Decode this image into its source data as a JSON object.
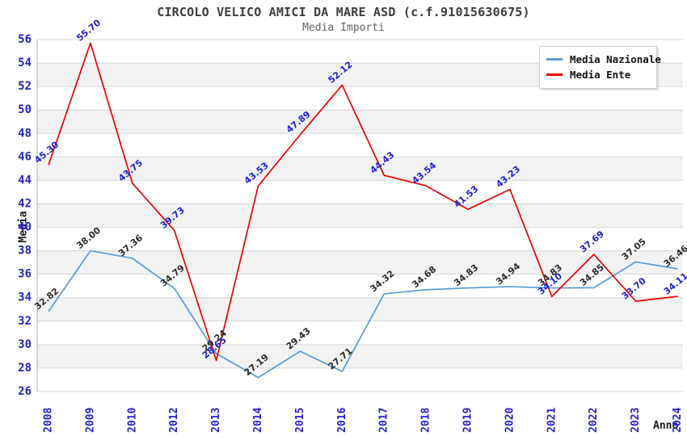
{
  "header": {
    "title": "CIRCOLO VELICO AMICI DA MARE ASD (c.f.91015630675)",
    "subtitle": "Media Importi"
  },
  "axes": {
    "y_title": "Media",
    "x_title": "Anno"
  },
  "legend": {
    "position": "top-right",
    "items": [
      {
        "label": "Media Nazionale",
        "color": "#5b9bd5"
      },
      {
        "label": "Media Ente",
        "color": "#ee0000"
      }
    ]
  },
  "chart_data": {
    "type": "line",
    "title": "CIRCOLO VELICO AMICI DA MARE ASD (c.f.91015630675)",
    "subtitle": "Media Importi",
    "xlabel": "Anno",
    "ylabel": "Media",
    "ylim": [
      26,
      56
    ],
    "ytick_step": 2,
    "grid": true,
    "alternating_bands": true,
    "legend_position": "top-right",
    "band_color": "#f2f2f2",
    "grid_color": "#d8d8d8",
    "axis_color": "#b0b0b0",
    "tick_color": "#2222cc",
    "categories": [
      "2008",
      "2009",
      "2010",
      "2012",
      "2013",
      "2014",
      "2015",
      "2016",
      "2017",
      "2018",
      "2019",
      "2020",
      "2021",
      "2022",
      "2023",
      "2024"
    ],
    "series": [
      {
        "name": "Media Nazionale",
        "color": "#5b9bd5",
        "label_color": "#2b2b2b",
        "values": [
          32.82,
          38.0,
          37.36,
          34.79,
          29.24,
          27.19,
          29.43,
          27.71,
          34.32,
          34.68,
          34.83,
          34.94,
          34.83,
          34.85,
          37.05,
          36.46
        ],
        "point_labels": [
          "32.82",
          "38.00",
          "37.36",
          "34.79",
          "29.24",
          "27.19",
          "29.43",
          "27.71",
          "34.32",
          "34.68",
          "34.83",
          "34.94",
          "34.83",
          "34.85",
          "37.05",
          "36.46"
        ]
      },
      {
        "name": "Media Ente",
        "color": "#ee0000",
        "label_color": "#2222cc",
        "values": [
          45.3,
          55.7,
          43.75,
          39.73,
          28.65,
          43.53,
          47.89,
          52.12,
          44.43,
          43.54,
          41.53,
          43.23,
          34.1,
          37.69,
          33.7,
          34.11
        ],
        "point_labels": [
          "45.30",
          "55.70",
          "43.75",
          "39.73",
          "28.65",
          "43.53",
          "47.89",
          "52.12",
          "44.43",
          "43.54",
          "41.53",
          "43.23",
          "34.10",
          "37.69",
          "33.70",
          "34.11"
        ]
      }
    ]
  }
}
